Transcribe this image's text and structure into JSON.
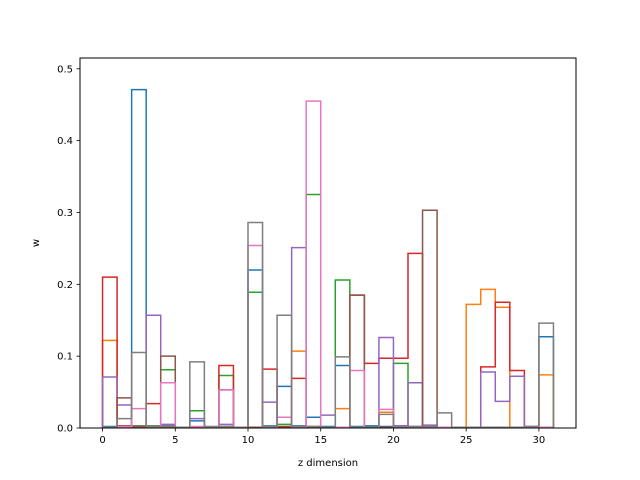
{
  "chart_data": {
    "type": "histogram-step",
    "title": "",
    "xlabel": "z dimension",
    "ylabel": "w",
    "xlim": [
      -1.55,
      32.55
    ],
    "ylim": [
      0,
      0.515
    ],
    "xticks": [
      0,
      5,
      10,
      15,
      20,
      25,
      30
    ],
    "yticks": [
      0.0,
      0.1,
      0.2,
      0.3,
      0.4,
      0.5
    ],
    "grid": false,
    "legend": "none",
    "bin_edges": [
      0,
      1,
      2,
      3,
      4,
      5,
      6,
      7,
      8,
      9,
      10,
      11,
      12,
      13,
      14,
      15,
      16,
      17,
      18,
      19,
      20,
      21,
      22,
      23,
      24,
      25,
      26,
      27,
      28,
      29,
      30,
      31
    ],
    "series": [
      {
        "color": "#1f77b4",
        "values": [
          0.002,
          0.003,
          0.471,
          0.003,
          0.003,
          0.001,
          0.01,
          0.001,
          0.002,
          0.001,
          0.22,
          0.003,
          0.058,
          0.003,
          0.015,
          0.002,
          0.087,
          0.002,
          0.003,
          0.002,
          0.003,
          0.002,
          0.002,
          0.001,
          0.001,
          0.001,
          0.001,
          0.001,
          0.001,
          0.002,
          0.127
        ]
      },
      {
        "color": "#ff7f0e",
        "values": [
          0.122,
          0.002,
          0.001,
          0.001,
          0.001,
          0.001,
          0.001,
          0.001,
          0.001,
          0.001,
          0.001,
          0.001,
          0.001,
          0.107,
          0.001,
          0.001,
          0.027,
          0.001,
          0.001,
          0.022,
          0.001,
          0.001,
          0.001,
          0.001,
          0.001,
          0.172,
          0.193,
          0.168,
          0.001,
          0.001,
          0.074
        ]
      },
      {
        "color": "#2ca02c",
        "values": [
          0.001,
          0.002,
          0.003,
          0.003,
          0.081,
          0.001,
          0.024,
          0.001,
          0.073,
          0.001,
          0.189,
          0.001,
          0.005,
          0.001,
          0.325,
          0.001,
          0.206,
          0.001,
          0.001,
          0.001,
          0.09,
          0.001,
          0.001,
          0.001,
          0.001,
          0.001,
          0.001,
          0.001,
          0.001,
          0.001,
          0.001
        ]
      },
      {
        "color": "#d62728",
        "values": [
          0.21,
          0.003,
          0.002,
          0.034,
          0.002,
          0.001,
          0.001,
          0.001,
          0.087,
          0.001,
          0.001,
          0.082,
          0.002,
          0.069,
          0.002,
          0.001,
          0.001,
          0.185,
          0.09,
          0.097,
          0.097,
          0.243,
          0.002,
          0.001,
          0.001,
          0.001,
          0.085,
          0.175,
          0.08,
          0.001,
          0.001
        ]
      },
      {
        "color": "#9467bd",
        "values": [
          0.071,
          0.032,
          0.001,
          0.157,
          0.005,
          0.001,
          0.013,
          0.001,
          0.005,
          0.001,
          0.001,
          0.036,
          0.001,
          0.251,
          0.001,
          0.018,
          0.001,
          0.001,
          0.001,
          0.126,
          0.003,
          0.063,
          0.004,
          0.001,
          0.001,
          0.001,
          0.078,
          0.037,
          0.072,
          0.001,
          0.001
        ]
      },
      {
        "color": "#8c564b",
        "values": [
          0.001,
          0.042,
          0.002,
          0.002,
          0.1,
          0.001,
          0.001,
          0.001,
          0.053,
          0.001,
          0.001,
          0.001,
          0.001,
          0.001,
          0.001,
          0.001,
          0.001,
          0.185,
          0.001,
          0.001,
          0.001,
          0.001,
          0.303,
          0.001,
          0.001,
          0.001,
          0.001,
          0.001,
          0.001,
          0.001,
          0.001
        ]
      },
      {
        "color": "#e377c2",
        "values": [
          0.001,
          0.002,
          0.027,
          0.002,
          0.063,
          0.001,
          0.002,
          0.001,
          0.053,
          0.001,
          0.254,
          0.001,
          0.015,
          0.001,
          0.455,
          0.001,
          0.001,
          0.08,
          0.001,
          0.026,
          0.001,
          0.001,
          0.001,
          0.001,
          0.001,
          0.001,
          0.001,
          0.001,
          0.001,
          0.001,
          0.001
        ]
      },
      {
        "color": "#7f7f7f",
        "values": [
          0.001,
          0.013,
          0.105,
          0.002,
          0.002,
          0.001,
          0.092,
          0.002,
          0.002,
          0.001,
          0.286,
          0.002,
          0.157,
          0.002,
          0.002,
          0.001,
          0.099,
          0.001,
          0.001,
          0.019,
          0.001,
          0.002,
          0.002,
          0.021,
          0.001,
          0.001,
          0.001,
          0.001,
          0.001,
          0.002,
          0.146
        ]
      }
    ]
  }
}
